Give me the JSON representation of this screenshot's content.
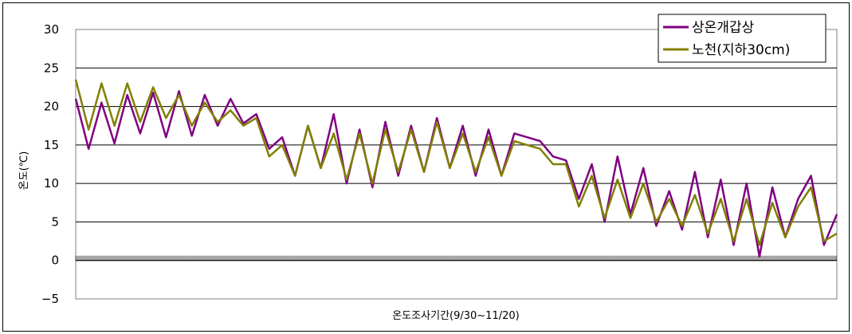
{
  "chart_data": {
    "type": "line",
    "title": "",
    "xlabel": "온도조사기간(9/30~11/20)",
    "ylabel": "온도(℃)",
    "ylim": [
      -5,
      30
    ],
    "yticks": [
      30,
      25,
      20,
      15,
      10,
      5,
      0,
      -5
    ],
    "grid": "horizontal",
    "legend_position": "top-right",
    "n_points": 60,
    "series": [
      {
        "name": "상온개갑상",
        "color": "#800080",
        "values": [
          21.0,
          14.5,
          20.5,
          15.2,
          21.5,
          16.5,
          21.8,
          16.0,
          22.0,
          16.2,
          21.5,
          17.5,
          21.0,
          17.8,
          19.0,
          14.5,
          16.0,
          11.0,
          17.5,
          12.0,
          19.0,
          10.0,
          17.0,
          9.5,
          18.0,
          11.0,
          17.5,
          11.5,
          18.5,
          12.0,
          17.5,
          11.0,
          17.0,
          11.0,
          16.5,
          16.0,
          15.5,
          13.5,
          13.0,
          8.0,
          12.5,
          5.0,
          13.5,
          6.0,
          12.0,
          4.5,
          9.0,
          4.0,
          11.5,
          3.0,
          10.5,
          2.0,
          10.0,
          0.5,
          9.5,
          3.0,
          8.0,
          11.0,
          2.0,
          6.0
        ]
      },
      {
        "name": "노천(지하30cm)",
        "color": "#808000",
        "values": [
          23.5,
          17.0,
          23.0,
          17.5,
          23.0,
          18.0,
          22.5,
          18.5,
          21.5,
          17.5,
          20.5,
          18.0,
          19.5,
          17.5,
          18.5,
          13.5,
          15.0,
          11.0,
          17.5,
          12.0,
          16.5,
          10.5,
          16.5,
          10.0,
          17.0,
          11.5,
          17.0,
          11.5,
          18.0,
          12.0,
          16.5,
          11.5,
          16.0,
          11.0,
          15.5,
          15.0,
          14.5,
          12.5,
          12.5,
          7.0,
          11.0,
          5.5,
          10.5,
          5.5,
          10.0,
          5.0,
          8.0,
          4.5,
          8.5,
          3.5,
          8.0,
          2.5,
          8.0,
          2.0,
          7.5,
          3.0,
          7.0,
          9.5,
          2.5,
          3.5
        ]
      }
    ]
  }
}
